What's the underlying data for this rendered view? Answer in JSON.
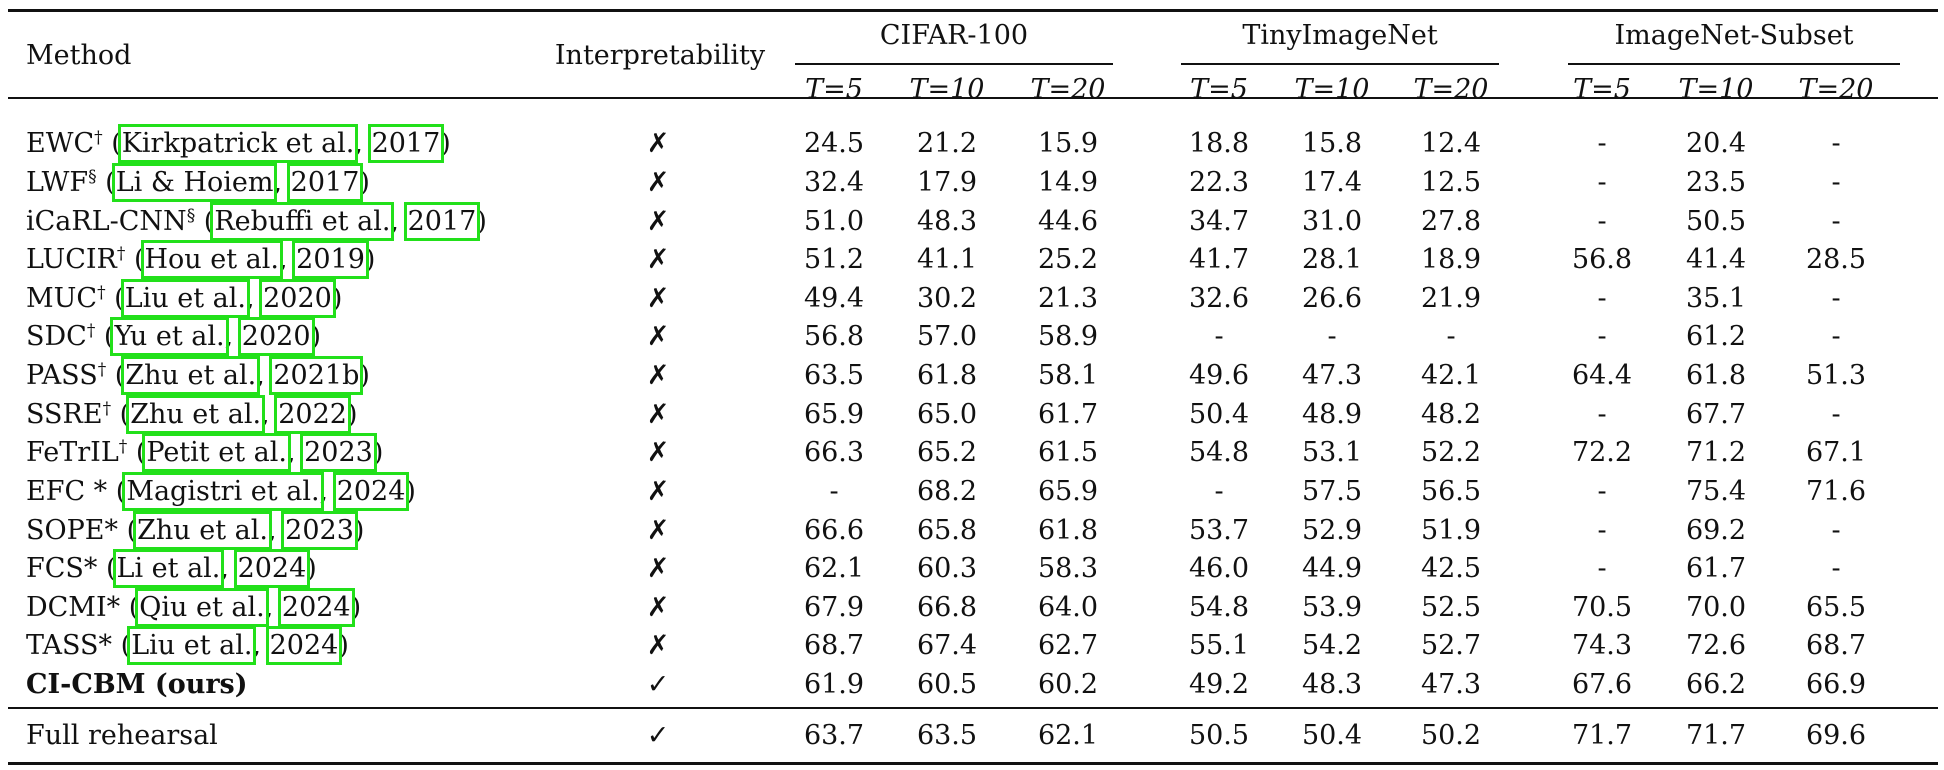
{
  "header": {
    "method": "Method",
    "interpretability": "Interpretability",
    "groups": [
      "CIFAR-100",
      "TinyImageNet",
      "ImageNet-Subset"
    ],
    "subcols": [
      "T=5",
      "T=10",
      "T=20"
    ]
  },
  "rows": [
    {
      "name": "EWC",
      "sup": "†",
      "author": "Kirkpatrick et al.",
      "year": "2017",
      "interp": "✗",
      "values": [
        "24.5",
        "21.2",
        "15.9",
        "18.8",
        "15.8",
        "12.4",
        "-",
        "20.4",
        "-"
      ]
    },
    {
      "name": "LWF",
      "sup": "§",
      "author": "Li & Hoiem",
      "year": "2017",
      "interp": "✗",
      "values": [
        "32.4",
        "17.9",
        "14.9",
        "22.3",
        "17.4",
        "12.5",
        "-",
        "23.5",
        "-"
      ]
    },
    {
      "name": "iCaRL-CNN",
      "sup": "§",
      "author": "Rebuffi et al.",
      "year": "2017",
      "interp": "✗",
      "values": [
        "51.0",
        "48.3",
        "44.6",
        "34.7",
        "31.0",
        "27.8",
        "-",
        "50.5",
        "-"
      ]
    },
    {
      "name": "LUCIR",
      "sup": "†",
      "author": "Hou et al.",
      "year": "2019",
      "interp": "✗",
      "values": [
        "51.2",
        "41.1",
        "25.2",
        "41.7",
        "28.1",
        "18.9",
        "56.8",
        "41.4",
        "28.5"
      ]
    },
    {
      "name": "MUC",
      "sup": "†",
      "author": "Liu et al.",
      "year": "2020",
      "interp": "✗",
      "values": [
        "49.4",
        "30.2",
        "21.3",
        "32.6",
        "26.6",
        "21.9",
        "-",
        "35.1",
        "-"
      ]
    },
    {
      "name": "SDC",
      "sup": "†",
      "author": "Yu et al.",
      "year": "2020",
      "interp": "✗",
      "values": [
        "56.8",
        "57.0",
        "58.9",
        "-",
        "-",
        "-",
        "-",
        "61.2",
        "-"
      ]
    },
    {
      "name": "PASS",
      "sup": "†",
      "author": "Zhu et al.",
      "year": "2021b",
      "interp": "✗",
      "values": [
        "63.5",
        "61.8",
        "58.1",
        "49.6",
        "47.3",
        "42.1",
        "64.4",
        "61.8",
        "51.3"
      ]
    },
    {
      "name": "SSRE",
      "sup": "†",
      "author": "Zhu et al.",
      "year": "2022",
      "interp": "✗",
      "values": [
        "65.9",
        "65.0",
        "61.7",
        "50.4",
        "48.9",
        "48.2",
        "-",
        "67.7",
        "-"
      ]
    },
    {
      "name": "FeTrIL",
      "sup": "†",
      "author": "Petit et al.",
      "year": "2023",
      "interp": "✗",
      "values": [
        "66.3",
        "65.2",
        "61.5",
        "54.8",
        "53.1",
        "52.2",
        "72.2",
        "71.2",
        "67.1"
      ]
    },
    {
      "name": "EFC *",
      "sup": "",
      "author": "Magistri et al.",
      "year": "2024",
      "interp": "✗",
      "values": [
        "-",
        "68.2",
        "65.9",
        "-",
        "57.5",
        "56.5",
        "-",
        "75.4",
        "71.6"
      ]
    },
    {
      "name": "SOPE*",
      "sup": "",
      "author": "Zhu et al.",
      "year": "2023",
      "interp": "✗",
      "values": [
        "66.6",
        "65.8",
        "61.8",
        "53.7",
        "52.9",
        "51.9",
        "-",
        "69.2",
        "-"
      ]
    },
    {
      "name": "FCS*",
      "sup": "",
      "author": "Li et al.",
      "year": "2024",
      "interp": "✗",
      "values": [
        "62.1",
        "60.3",
        "58.3",
        "46.0",
        "44.9",
        "42.5",
        "-",
        "61.7",
        "-"
      ]
    },
    {
      "name": "DCMI*",
      "sup": "",
      "author": "Qiu et al.",
      "year": "2024",
      "interp": "✗",
      "values": [
        "67.9",
        "66.8",
        "64.0",
        "54.8",
        "53.9",
        "52.5",
        "70.5",
        "70.0",
        "65.5"
      ]
    },
    {
      "name": "TASS*",
      "sup": "",
      "author": "Liu et al.",
      "year": "2024",
      "interp": "✗",
      "values": [
        "68.7",
        "67.4",
        "62.7",
        "55.1",
        "54.2",
        "52.7",
        "74.3",
        "72.6",
        "68.7"
      ]
    },
    {
      "name": "CI-CBM (ours)",
      "sup": "",
      "author": "",
      "year": "",
      "interp": "✓",
      "bold": true,
      "values": [
        "61.9",
        "60.5",
        "60.2",
        "49.2",
        "48.3",
        "47.3",
        "67.6",
        "66.2",
        "66.9"
      ]
    }
  ],
  "footer_row": {
    "name": "Full rehearsal",
    "interp": "✓",
    "values": [
      "63.7",
      "63.5",
      "62.1",
      "50.5",
      "50.4",
      "50.2",
      "71.7",
      "71.7",
      "69.6"
    ]
  },
  "colors": {
    "citation_box": "#22e01a",
    "text": "#111111"
  }
}
